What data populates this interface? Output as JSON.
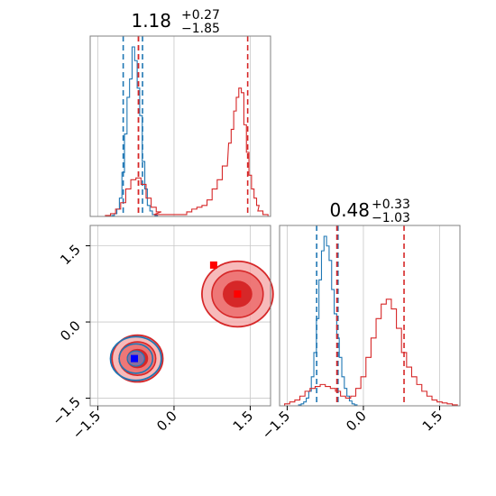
{
  "chart_data": [
    {
      "type": "histogram",
      "panel": "top-left",
      "title_value": "1.18",
      "title_sup": "+0.27",
      "title_sub": "−1.85",
      "xlim": [
        -1.65,
        1.9
      ],
      "grid": true,
      "series": [
        {
          "color": "#1f77b4",
          "bin_centers": [
            -1.25,
            -1.2,
            -1.15,
            -1.1,
            -1.05,
            -1.0,
            -0.95,
            -0.9,
            -0.85,
            -0.8,
            -0.75,
            -0.7,
            -0.65,
            -0.6,
            -0.55,
            -0.5,
            -0.45,
            -0.4,
            -0.35,
            -0.3
          ],
          "counts": [
            0,
            1,
            3,
            8,
            20,
            48,
            90,
            130,
            150,
            185,
            170,
            140,
            110,
            60,
            30,
            12,
            6,
            2,
            1,
            0
          ],
          "quantile_lines": [
            -1.0,
            -0.62
          ]
        },
        {
          "color": "#d62728",
          "bin_centers": [
            -1.3,
            -1.2,
            -1.1,
            -1.0,
            -0.9,
            -0.8,
            -0.7,
            -0.6,
            -0.5,
            -0.4,
            -0.3,
            -0.2,
            0.2,
            0.3,
            0.4,
            0.5,
            0.6,
            0.7,
            0.8,
            0.9,
            1.0,
            1.1,
            1.15,
            1.2,
            1.25,
            1.3,
            1.35,
            1.4,
            1.45,
            1.5,
            1.55,
            1.6,
            1.65,
            1.7,
            1.8
          ],
          "counts": [
            1,
            3,
            8,
            15,
            30,
            40,
            42,
            35,
            20,
            10,
            5,
            2,
            2,
            5,
            8,
            10,
            12,
            18,
            30,
            40,
            55,
            80,
            95,
            115,
            130,
            140,
            135,
            100,
            70,
            45,
            30,
            20,
            12,
            6,
            2
          ],
          "quantile_lines": [
            1.45
          ]
        }
      ],
      "median_line": {
        "x": -0.7,
        "color": "#d62728"
      }
    },
    {
      "type": "contour",
      "panel": "bottom-left",
      "xlim": [
        -1.65,
        1.9
      ],
      "ylim": [
        -1.65,
        1.9
      ],
      "grid": true,
      "x_ticks": [
        "−1.5",
        "0.0",
        "1.5"
      ],
      "y_ticks": [
        "−1.5",
        "0.0",
        "1.5"
      ],
      "series": [
        {
          "color": "#d62728",
          "modes": [
            {
              "x": -0.72,
              "y": -0.72
            },
            {
              "x": 1.25,
              "y": 0.55
            }
          ]
        },
        {
          "color": "#1f77b4",
          "modes": [
            {
              "x": -0.75,
              "y": -0.72
            }
          ]
        }
      ],
      "markers": [
        {
          "x": -0.78,
          "y": -0.72,
          "color": "#0000ff"
        },
        {
          "x": 0.78,
          "y": 1.12,
          "color": "#ff0000"
        },
        {
          "x": 1.25,
          "y": 0.55,
          "color": "#ff0000"
        }
      ]
    },
    {
      "type": "histogram",
      "panel": "bottom-right",
      "title_value": "0.48",
      "title_sup": "+0.33",
      "title_sub": "−1.03",
      "xlim": [
        -1.65,
        1.9
      ],
      "grid": true,
      "x_ticks": [
        "−1.5",
        "0.0",
        "1.5"
      ],
      "series": [
        {
          "color": "#1f77b4",
          "bin_centers": [
            -1.3,
            -1.25,
            -1.2,
            -1.15,
            -1.1,
            -1.05,
            -1.0,
            -0.95,
            -0.9,
            -0.85,
            -0.8,
            -0.75,
            -0.7,
            -0.65,
            -0.6,
            -0.55,
            -0.5,
            -0.45,
            -0.4,
            -0.35,
            -0.3,
            -0.25,
            -0.2,
            -0.15,
            -0.1
          ],
          "counts": [
            0,
            1,
            2,
            4,
            8,
            15,
            30,
            55,
            90,
            130,
            160,
            175,
            165,
            150,
            120,
            95,
            70,
            50,
            30,
            18,
            10,
            5,
            2,
            1,
            0
          ],
          "quantile_lines": [
            -0.92,
            -0.5
          ]
        },
        {
          "color": "#d62728",
          "bin_centers": [
            -1.5,
            -1.4,
            -1.3,
            -1.2,
            -1.1,
            -1.0,
            -0.9,
            -0.8,
            -0.7,
            -0.6,
            -0.5,
            -0.4,
            -0.3,
            -0.2,
            -0.1,
            0.0,
            0.1,
            0.2,
            0.3,
            0.4,
            0.5,
            0.6,
            0.7,
            0.8,
            0.9,
            1.0,
            1.1,
            1.2,
            1.3,
            1.4,
            1.5,
            1.6,
            1.7,
            1.8
          ],
          "counts": [
            2,
            4,
            6,
            10,
            15,
            18,
            20,
            22,
            20,
            18,
            15,
            10,
            8,
            10,
            18,
            30,
            50,
            70,
            90,
            105,
            110,
            100,
            80,
            55,
            40,
            30,
            22,
            15,
            10,
            6,
            4,
            3,
            2,
            1
          ],
          "quantile_lines": [
            0.8
          ]
        }
      ],
      "median_line": {
        "x": -0.52,
        "color": "#d62728"
      }
    }
  ]
}
